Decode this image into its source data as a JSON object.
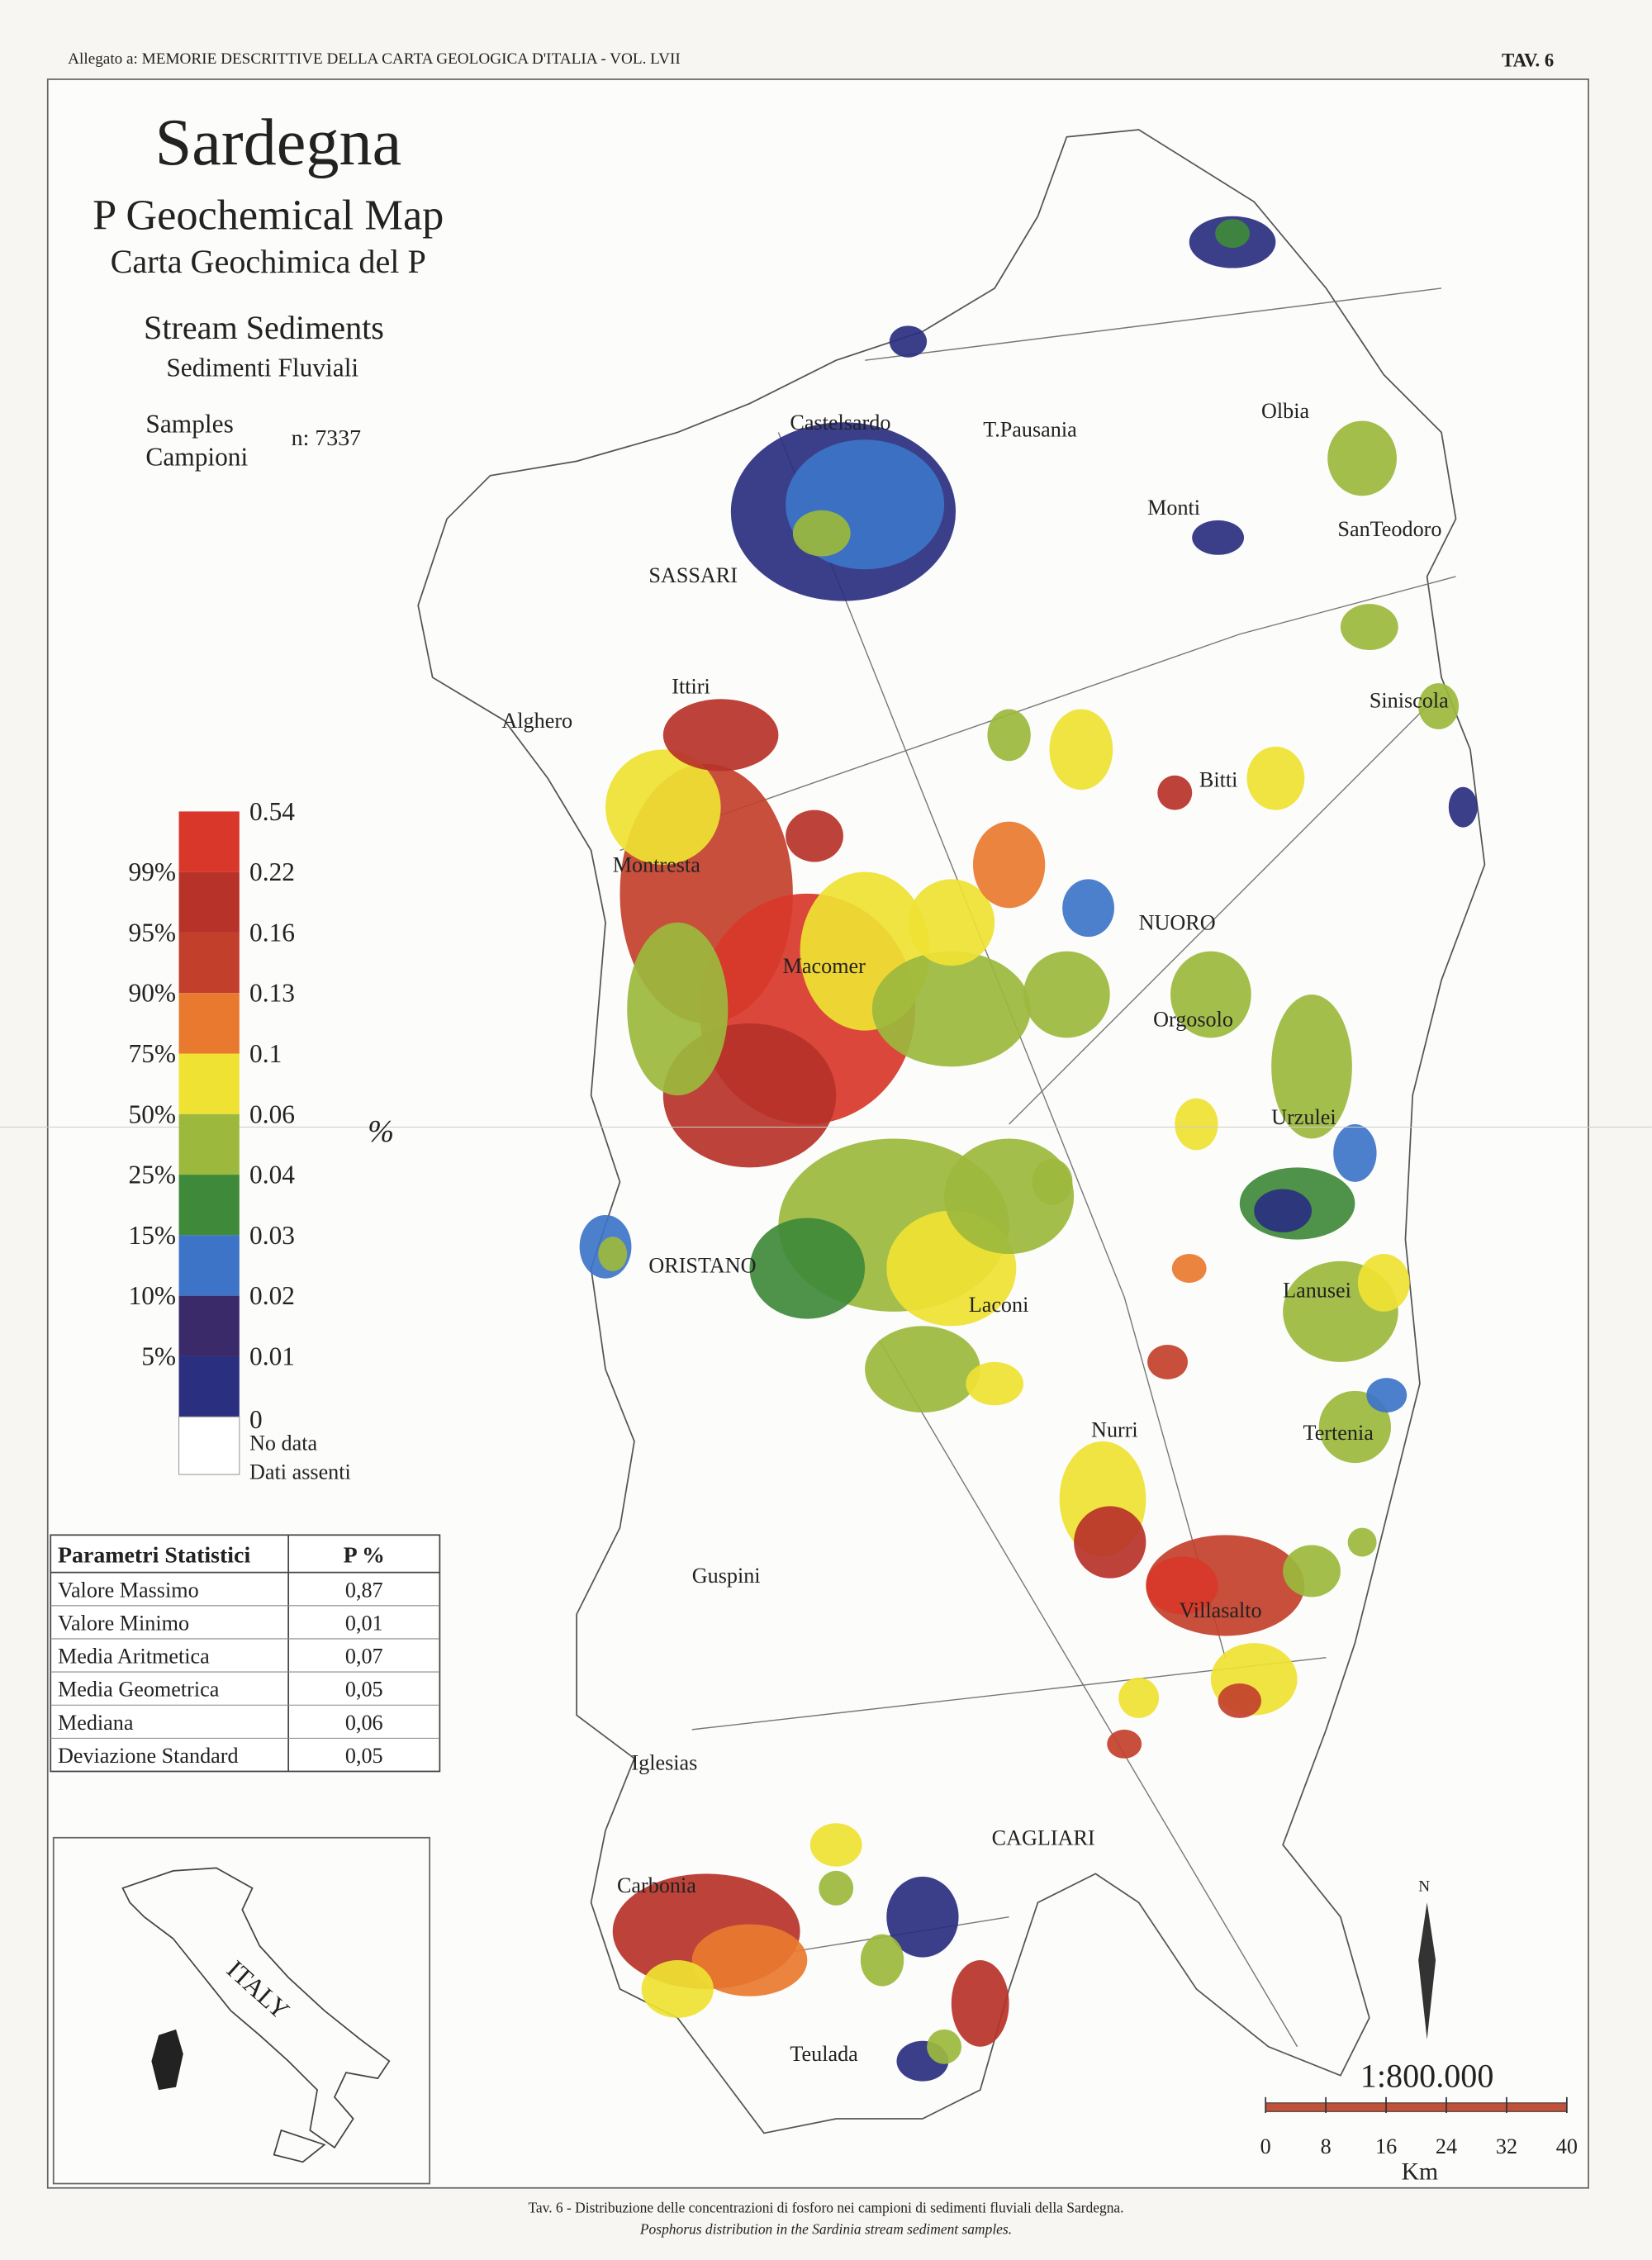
{
  "header": {
    "left": "Allegato a: MEMORIE DESCRITTIVE DELLA CARTA GEOLOGICA D'ITALIA - VOL. LVII",
    "right": "TAV. 6"
  },
  "title": {
    "main": "Sardegna",
    "line1": "P Geochemical Map",
    "line2": "Carta Geochimica del P",
    "line3": "Stream Sediments",
    "line4": "Sedimenti Fluviali",
    "samples_en": "Samples",
    "samples_it": "Campioni",
    "samples_n": "n: 7337"
  },
  "legend": {
    "unit": "%",
    "top_value": "0.54",
    "colors": [
      "#d8372a",
      "#b73229",
      "#c2402b",
      "#e8792f",
      "#efe233",
      "#9cb93d",
      "#3f8a3a",
      "#3d74c8",
      "#3b2a6a",
      "#2a2f80"
    ],
    "breaks": [
      {
        "percentile": "99%",
        "value": "0.22"
      },
      {
        "percentile": "95%",
        "value": "0.16"
      },
      {
        "percentile": "90%",
        "value": "0.13"
      },
      {
        "percentile": "75%",
        "value": "0.1"
      },
      {
        "percentile": "50%",
        "value": "0.06"
      },
      {
        "percentile": "25%",
        "value": "0.04"
      },
      {
        "percentile": "15%",
        "value": "0.03"
      },
      {
        "percentile": "10%",
        "value": "0.02"
      },
      {
        "percentile": "5%",
        "value": "0.01"
      }
    ],
    "bottom_value": "0",
    "nodata": "No data",
    "nodata_it": "Dati assenti"
  },
  "stats": {
    "header": [
      "Parametri Statistici",
      "P   %"
    ],
    "rows": [
      [
        "Valore Massimo",
        "0,87"
      ],
      [
        "Valore Minimo",
        "0,01"
      ],
      [
        "Media Aritmetica",
        "0,07"
      ],
      [
        "Media Geometrica",
        "0,05"
      ],
      [
        "Mediana",
        "0,06"
      ],
      [
        "Deviazione Standard",
        "0,05"
      ]
    ]
  },
  "places": [
    "Castelsardo",
    "T.Pausania",
    "Olbia",
    "Monti",
    "SanTeodoro",
    "SASSARI",
    "Ittiri",
    "Alghero",
    "Siniscola",
    "Bitti",
    "Montresta",
    "NUORO",
    "Macomer",
    "Orgosolo",
    "Urzulei",
    "ORISTANO",
    "Laconi",
    "Lanusei",
    "Nurri",
    "Tertenia",
    "Villasalto",
    "Guspini",
    "Iglesias",
    "CAGLIARI",
    "Carbonia",
    "Teulada"
  ],
  "inset": {
    "label": "ITALY"
  },
  "scale": {
    "ratio": "1:800.000",
    "ticks": [
      "0",
      "8",
      "16",
      "24",
      "32",
      "40"
    ],
    "unit": "Km",
    "north": "N"
  },
  "caption": {
    "it": "Tav. 6 - Distribuzione delle concentrazioni di fosforo nei campioni di sedimenti fluviali della Sardegna.",
    "en": "Posphorus distribution in the Sardinia stream sediment samples."
  }
}
